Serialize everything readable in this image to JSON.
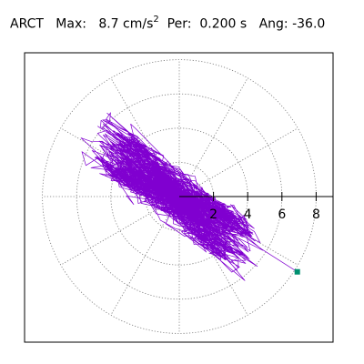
{
  "header": {
    "station": "ARCT",
    "max_label": "Max:",
    "max_value": "8.7 cm/s",
    "max_exp": "2",
    "per_label": "Per:",
    "per_value": "0.200 s",
    "ang_label": "Ang:",
    "ang_value": "-36.0"
  },
  "chart_data": {
    "type": "polar-particle-motion",
    "title": "ARCT Max: 8.7 cm/s2 Per: 0.200 s Ang: -36.0",
    "r_max_visible": 8.7,
    "radial_ticks": [
      {
        "value": 2,
        "label": "2"
      },
      {
        "value": 4,
        "label": "4"
      },
      {
        "value": 6,
        "label": "6"
      },
      {
        "value": 8,
        "label": "8"
      }
    ],
    "rings": [
      2,
      4,
      6,
      8
    ],
    "spokes_deg": [
      0,
      30,
      60,
      90,
      120,
      150,
      180,
      210,
      240,
      270,
      300,
      330
    ],
    "grid": true,
    "trace_color": "#8000d0",
    "marker_color": "#009070",
    "dominant_angle_deg": -36.0,
    "end_point": {
      "x": 6.9,
      "y": -4.4
    },
    "trace_description": "dense particle-motion trajectory concentrated near the origin, with elongated ellipses along azimuth ≈ -36°, reaching up to ~8.7 units"
  }
}
